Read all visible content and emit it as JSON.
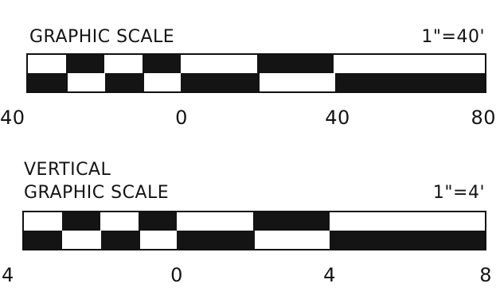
{
  "scales": [
    {
      "title_lines": [
        "GRAPHIC SCALE"
      ],
      "ratio": "1\"=40'",
      "ticks": [
        "40",
        "0",
        "40",
        "80"
      ],
      "top_row": [
        "light",
        "dark",
        "light",
        "dark",
        "light",
        "dark",
        "light"
      ],
      "bottom_row": [
        "dark",
        "light",
        "dark",
        "light",
        "dark",
        "light",
        "dark"
      ]
    },
    {
      "title_lines": [
        "VERTICAL",
        "GRAPHIC SCALE"
      ],
      "ratio": "1\"=4'",
      "ticks": [
        "4",
        "0",
        "4",
        "8"
      ],
      "top_row": [
        "light",
        "dark",
        "light",
        "dark",
        "light",
        "dark",
        "light"
      ],
      "bottom_row": [
        "dark",
        "light",
        "dark",
        "light",
        "dark",
        "light",
        "dark"
      ]
    }
  ],
  "colors": {
    "dark": "#141414",
    "light": "#ffffff"
  }
}
